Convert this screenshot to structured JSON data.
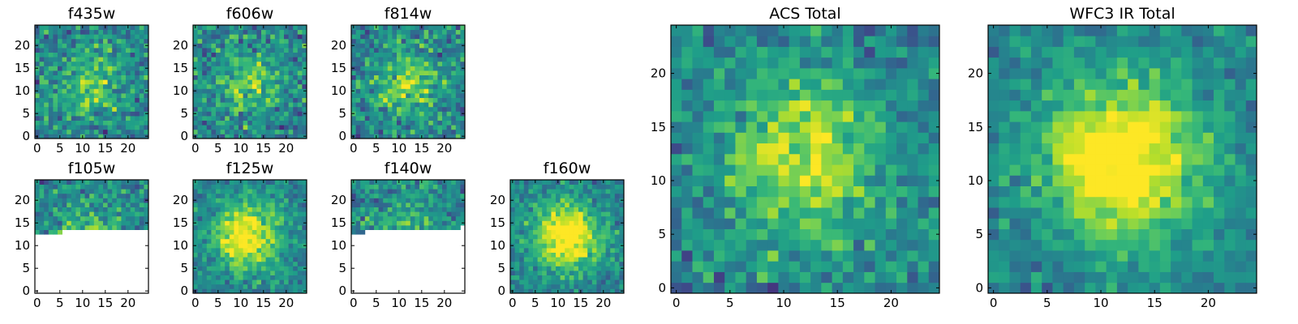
{
  "chart_data": [
    {
      "id": "f435w",
      "type": "heatmap",
      "title": "f435w",
      "grid_size": 25,
      "xticks": [
        "0",
        "5",
        "10",
        "15",
        "20"
      ],
      "yticks": [
        "0",
        "5",
        "10",
        "15",
        "20"
      ],
      "coverage": "full",
      "peak": [
        12,
        12
      ],
      "peak_level": 0.3,
      "noise": 0.5,
      "seed": 11
    },
    {
      "id": "f606w",
      "type": "heatmap",
      "title": "f606w",
      "grid_size": 25,
      "xticks": [
        "0",
        "5",
        "10",
        "15",
        "20"
      ],
      "yticks": [
        "0",
        "5",
        "10",
        "15",
        "20"
      ],
      "coverage": "full",
      "peak": [
        12,
        12
      ],
      "peak_level": 0.3,
      "noise": 0.5,
      "seed": 23
    },
    {
      "id": "f814w",
      "type": "heatmap",
      "title": "f814w",
      "grid_size": 25,
      "xticks": [
        "0",
        "5",
        "10",
        "15",
        "20"
      ],
      "yticks": [
        "0",
        "5",
        "10",
        "15",
        "20"
      ],
      "coverage": "full",
      "peak": [
        12,
        12
      ],
      "peak_level": 0.35,
      "noise": 0.5,
      "seed": 37
    },
    {
      "id": "f105w",
      "type": "heatmap",
      "title": "f105w",
      "grid_size": 25,
      "xticks": [
        "0",
        "5",
        "10",
        "15",
        "20"
      ],
      "yticks": [
        "0",
        "5",
        "10",
        "15",
        "20"
      ],
      "coverage": "partial",
      "valid_from_row": [
        13,
        13,
        13,
        13,
        13,
        13,
        14,
        14,
        14,
        14,
        14,
        14,
        14,
        14,
        14,
        14,
        14,
        14,
        14,
        14,
        14,
        14,
        14,
        14,
        14
      ],
      "peak": [
        12,
        12
      ],
      "peak_level": 0.3,
      "noise": 0.45,
      "seed": 41
    },
    {
      "id": "f125w",
      "type": "heatmap",
      "title": "f125w",
      "grid_size": 25,
      "xticks": [
        "0",
        "5",
        "10",
        "15",
        "20"
      ],
      "yticks": [
        "0",
        "5",
        "10",
        "15",
        "20"
      ],
      "coverage": "full",
      "peak": [
        11,
        12
      ],
      "peak_level": 0.6,
      "noise": 0.35,
      "seed": 53
    },
    {
      "id": "f140w",
      "type": "heatmap",
      "title": "f140w",
      "grid_size": 25,
      "xticks": [
        "0",
        "5",
        "10",
        "15",
        "20"
      ],
      "yticks": [
        "0",
        "5",
        "10",
        "15",
        "20"
      ],
      "coverage": "partial",
      "valid_from_row": [
        13,
        13,
        13,
        14,
        14,
        14,
        14,
        14,
        14,
        14,
        14,
        14,
        14,
        14,
        14,
        14,
        14,
        14,
        14,
        14,
        14,
        14,
        14,
        14,
        15
      ],
      "peak": [
        12,
        12
      ],
      "peak_level": 0.3,
      "noise": 0.45,
      "seed": 67
    },
    {
      "id": "f160w",
      "type": "heatmap",
      "title": "f160w",
      "grid_size": 25,
      "xticks": [
        "0",
        "5",
        "10",
        "15",
        "20"
      ],
      "yticks": [
        "0",
        "5",
        "10",
        "15",
        "20"
      ],
      "coverage": "full",
      "peak": [
        12,
        12
      ],
      "peak_level": 0.65,
      "noise": 0.35,
      "seed": 79
    },
    {
      "id": "acs-total",
      "type": "heatmap",
      "title": "ACS Total",
      "grid_size": 25,
      "xticks": [
        "0",
        "5",
        "10",
        "15",
        "20"
      ],
      "yticks": [
        "0",
        "5",
        "10",
        "15",
        "20"
      ],
      "coverage": "full",
      "peak": [
        12,
        12
      ],
      "peak_level": 0.45,
      "noise": 0.4,
      "seed": 97
    },
    {
      "id": "wfc3-ir-total",
      "type": "heatmap",
      "title": "WFC3 IR Total",
      "grid_size": 25,
      "xticks": [
        "0",
        "5",
        "10",
        "15",
        "20"
      ],
      "yticks": [
        "0",
        "5",
        "10",
        "15",
        "20"
      ],
      "coverage": "full",
      "peak": [
        12,
        12
      ],
      "peak_level": 0.7,
      "noise": 0.3,
      "seed": 113
    }
  ],
  "colormap": "viridis"
}
